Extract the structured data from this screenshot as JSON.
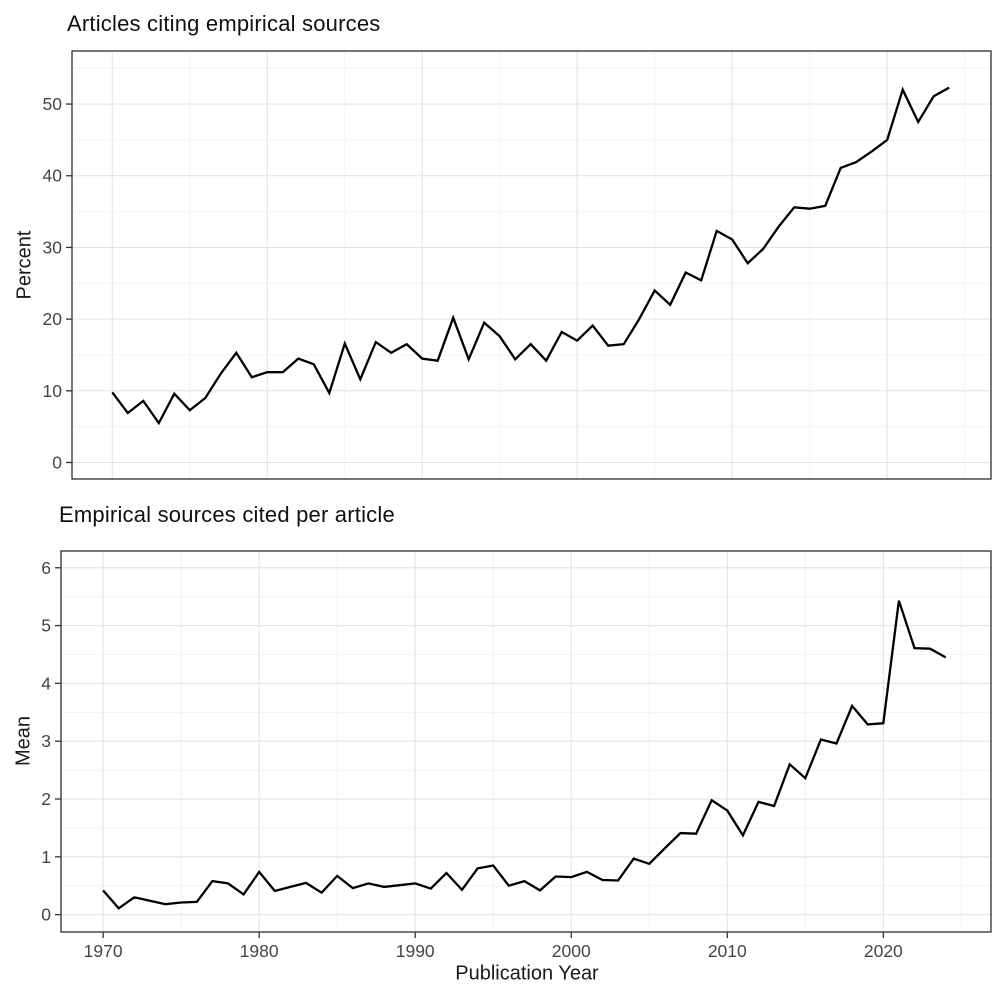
{
  "page_background": "#ffffff",
  "x_axis_title": "Publication Year",
  "colors": {
    "line": "#000000",
    "grid_major": "#e4e4e4",
    "grid_minor": "#f0f0f0",
    "panel_border": "#2e2e2e",
    "tick_mark": "#333333",
    "tick_label": "#454545",
    "title_text": "#111111"
  },
  "chart_data": [
    {
      "type": "line",
      "title": "Articles citing empirical sources",
      "ylabel": "Percent",
      "xlabel": "",
      "legend": "none",
      "grid": true,
      "x": [
        1970,
        1971,
        1972,
        1973,
        1974,
        1975,
        1976,
        1977,
        1978,
        1979,
        1980,
        1981,
        1982,
        1983,
        1984,
        1985,
        1986,
        1987,
        1988,
        1989,
        1990,
        1991,
        1992,
        1993,
        1994,
        1995,
        1996,
        1997,
        1998,
        1999,
        2000,
        2001,
        2002,
        2003,
        2004,
        2005,
        2006,
        2007,
        2008,
        2009,
        2010,
        2011,
        2012,
        2013,
        2014,
        2015,
        2016,
        2017,
        2018,
        2019,
        2020,
        2021,
        2022,
        2023,
        2024
      ],
      "values": [
        9.8,
        6.9,
        8.6,
        5.5,
        9.6,
        7.3,
        9.0,
        12.4,
        15.3,
        11.9,
        12.6,
        12.6,
        14.5,
        13.7,
        9.7,
        16.6,
        11.6,
        16.8,
        15.3,
        16.5,
        14.5,
        14.2,
        20.2,
        14.4,
        19.5,
        17.6,
        14.4,
        16.5,
        14.2,
        18.2,
        17.0,
        19.1,
        16.3,
        16.5,
        20.0,
        24.0,
        22.0,
        26.5,
        25.4,
        32.3,
        31.1,
        27.8,
        29.8,
        32.9,
        35.6,
        35.4,
        35.8,
        41.1,
        41.9,
        43.4,
        45.0,
        52.0,
        47.5,
        51.1,
        52.3
      ],
      "xlim": [
        1967.4,
        2026.7
      ],
      "ylim": [
        -2.3,
        57.4
      ],
      "y_ticks": [
        0,
        10,
        20,
        30,
        40,
        50
      ],
      "y_minor": [
        5,
        15,
        25,
        35,
        45,
        55
      ],
      "x_ticks": [
        1970,
        1980,
        1990,
        2000,
        2010,
        2020
      ],
      "x_minor": [
        1975,
        1985,
        1995,
        2005,
        2015,
        2025
      ],
      "show_x_labels": false
    },
    {
      "type": "line",
      "title": "Empirical sources cited per article",
      "ylabel": "Mean",
      "xlabel": "Publication Year",
      "legend": "none",
      "grid": true,
      "x": [
        1970,
        1971,
        1972,
        1973,
        1974,
        1975,
        1976,
        1977,
        1978,
        1979,
        1980,
        1981,
        1982,
        1983,
        1984,
        1985,
        1986,
        1987,
        1988,
        1989,
        1990,
        1991,
        1992,
        1993,
        1994,
        1995,
        1996,
        1997,
        1998,
        1999,
        2000,
        2001,
        2002,
        2003,
        2004,
        2005,
        2006,
        2007,
        2008,
        2009,
        2010,
        2011,
        2012,
        2013,
        2014,
        2015,
        2016,
        2017,
        2018,
        2019,
        2020,
        2021,
        2022,
        2023,
        2024
      ],
      "values": [
        0.42,
        0.11,
        0.3,
        0.24,
        0.18,
        0.21,
        0.22,
        0.58,
        0.54,
        0.35,
        0.74,
        0.41,
        0.48,
        0.55,
        0.38,
        0.67,
        0.46,
        0.54,
        0.48,
        0.51,
        0.54,
        0.45,
        0.72,
        0.43,
        0.8,
        0.85,
        0.5,
        0.58,
        0.42,
        0.66,
        0.65,
        0.74,
        0.6,
        0.59,
        0.97,
        0.88,
        1.15,
        1.41,
        1.4,
        1.98,
        1.8,
        1.37,
        1.95,
        1.88,
        2.6,
        2.36,
        3.03,
        2.96,
        3.61,
        3.29,
        3.31,
        5.43,
        4.61,
        4.6,
        4.45
      ],
      "xlim": [
        1967.3,
        2026.9
      ],
      "ylim": [
        -0.3,
        6.29
      ],
      "y_ticks": [
        0,
        1,
        2,
        3,
        4,
        5,
        6
      ],
      "y_minor": [
        0.5,
        1.5,
        2.5,
        3.5,
        4.5,
        5.5
      ],
      "x_ticks": [
        1970,
        1980,
        1990,
        2000,
        2010,
        2020
      ],
      "x_minor": [
        1975,
        1985,
        1995,
        2005,
        2015,
        2025
      ],
      "show_x_labels": true
    }
  ]
}
